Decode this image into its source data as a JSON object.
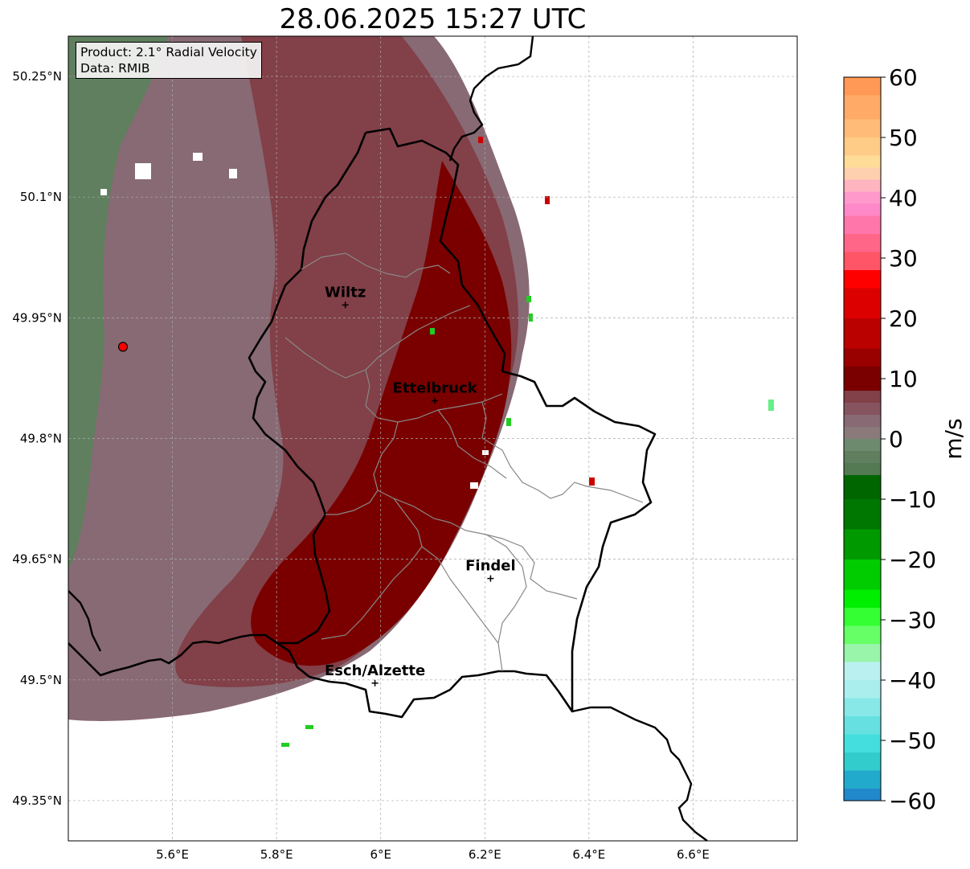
{
  "title": "28.06.2025 15:27 UTC",
  "info": {
    "product": "Product: 2.1° Radial Velocity",
    "data": "Data: RMIB"
  },
  "map": {
    "lon_range": [
      5.4,
      6.8
    ],
    "lat_range": [
      49.3,
      50.3
    ],
    "lon_ticks": [
      {
        "value": 5.6,
        "label": "5.6°E"
      },
      {
        "value": 5.8,
        "label": "5.8°E"
      },
      {
        "value": 6.0,
        "label": "6°E"
      },
      {
        "value": 6.2,
        "label": "6.2°E"
      },
      {
        "value": 6.4,
        "label": "6.4°E"
      },
      {
        "value": 6.6,
        "label": "6.6°E"
      }
    ],
    "lat_ticks": [
      {
        "value": 50.25,
        "label": "50.25°N"
      },
      {
        "value": 50.1,
        "label": "50.1°N"
      },
      {
        "value": 49.95,
        "label": "49.95°N"
      },
      {
        "value": 49.8,
        "label": "49.8°N"
      },
      {
        "value": 49.65,
        "label": "49.65°N"
      },
      {
        "value": 49.5,
        "label": "49.5°N"
      },
      {
        "value": 49.35,
        "label": "49.35°N"
      }
    ],
    "radar_site": {
      "lon": 5.505,
      "lat": 49.914,
      "color": "#ff0000"
    },
    "cities": [
      {
        "name": "Wiltz",
        "lon": 5.932,
        "lat": 49.966
      },
      {
        "name": "Ettelbruck",
        "lon": 6.104,
        "lat": 49.847
      },
      {
        "name": "Findel",
        "lon": 6.211,
        "lat": 49.626
      },
      {
        "name": "Esch/Alzette",
        "lon": 5.989,
        "lat": 49.496
      }
    ]
  },
  "colorbar": {
    "label": "m/s",
    "range": [
      -60,
      60
    ],
    "ticks": [
      {
        "value": 60,
        "label": "60"
      },
      {
        "value": 50,
        "label": "50"
      },
      {
        "value": 40,
        "label": "40"
      },
      {
        "value": 30,
        "label": "30"
      },
      {
        "value": 20,
        "label": "20"
      },
      {
        "value": 10,
        "label": "10"
      },
      {
        "value": 0,
        "label": "0"
      },
      {
        "value": -10,
        "label": "−10"
      },
      {
        "value": -20,
        "label": "−20"
      },
      {
        "value": -30,
        "label": "−30"
      },
      {
        "value": -40,
        "label": "−40"
      },
      {
        "value": -50,
        "label": "−50"
      },
      {
        "value": -60,
        "label": "−60"
      }
    ],
    "stops": [
      {
        "from": 57,
        "to": 60,
        "color": "#ff9955"
      },
      {
        "from": 53,
        "to": 57,
        "color": "#ffaa66"
      },
      {
        "from": 50,
        "to": 53,
        "color": "#ffbb77"
      },
      {
        "from": 47,
        "to": 50,
        "color": "#ffcc88"
      },
      {
        "from": 45,
        "to": 47,
        "color": "#ffdd99"
      },
      {
        "from": 43,
        "to": 45,
        "color": "#ffd0b0"
      },
      {
        "from": 41,
        "to": 43,
        "color": "#ffb5c0"
      },
      {
        "from": 39,
        "to": 41,
        "color": "#ff99cc"
      },
      {
        "from": 37,
        "to": 39,
        "color": "#ff88c8"
      },
      {
        "from": 34,
        "to": 37,
        "color": "#ff77aa"
      },
      {
        "from": 31,
        "to": 34,
        "color": "#ff6688"
      },
      {
        "from": 28,
        "to": 31,
        "color": "#ff5566"
      },
      {
        "from": 25,
        "to": 28,
        "color": "#ff0000"
      },
      {
        "from": 20,
        "to": 25,
        "color": "#dd0000"
      },
      {
        "from": 15,
        "to": 20,
        "color": "#bb0000"
      },
      {
        "from": 12,
        "to": 15,
        "color": "#990000"
      },
      {
        "from": 8,
        "to": 12,
        "color": "#7a0000"
      },
      {
        "from": 6,
        "to": 8,
        "color": "#824048"
      },
      {
        "from": 4,
        "to": 6,
        "color": "#85545f"
      },
      {
        "from": 2,
        "to": 4,
        "color": "#886a74"
      },
      {
        "from": 0,
        "to": 2,
        "color": "#8a7b7a"
      },
      {
        "from": -2,
        "to": 0,
        "color": "#6e8a6e"
      },
      {
        "from": -4,
        "to": -2,
        "color": "#5f7f5f"
      },
      {
        "from": -6,
        "to": -4,
        "color": "#537a53"
      },
      {
        "from": -10,
        "to": -6,
        "color": "#006600"
      },
      {
        "from": -15,
        "to": -10,
        "color": "#007700"
      },
      {
        "from": -20,
        "to": -15,
        "color": "#009900"
      },
      {
        "from": -25,
        "to": -20,
        "color": "#00cc00"
      },
      {
        "from": -28,
        "to": -25,
        "color": "#00ee00"
      },
      {
        "from": -31,
        "to": -28,
        "color": "#33ff33"
      },
      {
        "from": -34,
        "to": -31,
        "color": "#66ff66"
      },
      {
        "from": -37,
        "to": -34,
        "color": "#99f5aa"
      },
      {
        "from": -40,
        "to": -37,
        "color": "#bbf0f0"
      },
      {
        "from": -43,
        "to": -40,
        "color": "#aaeeee"
      },
      {
        "from": -46,
        "to": -43,
        "color": "#88e8e8"
      },
      {
        "from": -49,
        "to": -46,
        "color": "#66e0e0"
      },
      {
        "from": -52,
        "to": -49,
        "color": "#44dede"
      },
      {
        "from": -55,
        "to": -52,
        "color": "#33cccc"
      },
      {
        "from": -58,
        "to": -55,
        "color": "#22aacc"
      },
      {
        "from": -60,
        "to": -58,
        "color": "#2288cc"
      }
    ]
  },
  "colors": {
    "outbound_weak": "#886a74",
    "outbound_mid": "#824048",
    "outbound_strong": "#7a0000",
    "inbound_weak": "#5f7f5f",
    "border": "#000000",
    "canton_border": "#888888"
  }
}
